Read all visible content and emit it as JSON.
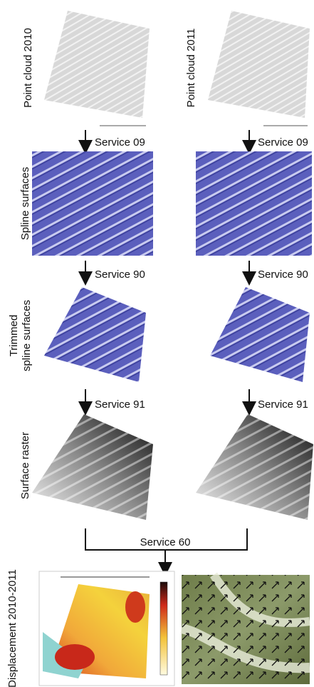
{
  "stages": {
    "point_cloud": [
      "Point cloud 2010",
      "Point cloud 2011"
    ],
    "spline": "Spline surfaces",
    "trimmed": [
      "Trimmed",
      "spline surfaces"
    ],
    "raster": "Surface raster",
    "displacement": "Displacement 2010-2011"
  },
  "services": [
    "Service 09",
    "Service 90",
    "Service 91",
    "Service 60"
  ]
}
